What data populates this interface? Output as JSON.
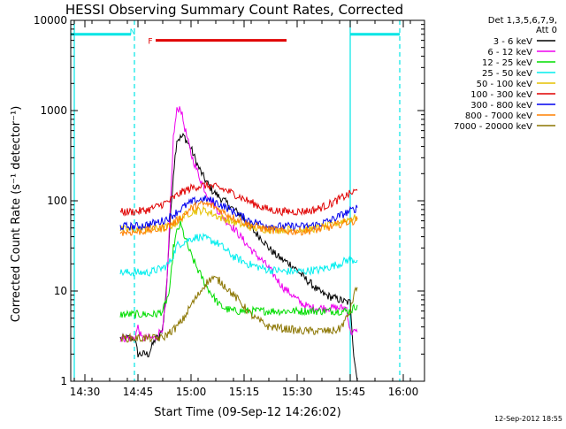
{
  "chart_data": {
    "type": "line",
    "title": "HESSI Observing Summary Count Rates, Corrected",
    "xlabel": "Start Time (09-Sep-12 14:26:02)",
    "ylabel": "Corrected Count Rate (s⁻¹ detector⁻¹)",
    "footer": "12-Sep-2012 18:55",
    "x_unit": "minutes after 14:26:02",
    "xlim": [
      0,
      100
    ],
    "ylim": [
      1,
      10000
    ],
    "yscale": "log",
    "x_ticks": [
      {
        "x": 4,
        "label": "14:30"
      },
      {
        "x": 19,
        "label": "14:45"
      },
      {
        "x": 34,
        "label": "15:00"
      },
      {
        "x": 49,
        "label": "15:15"
      },
      {
        "x": 64,
        "label": "15:30"
      },
      {
        "x": 79,
        "label": "15:45"
      },
      {
        "x": 94,
        "label": "16:00"
      }
    ],
    "y_ticks": [
      {
        "y": 1,
        "label": "1"
      },
      {
        "y": 10,
        "label": "10"
      },
      {
        "y": 100,
        "label": "100"
      },
      {
        "y": 1000,
        "label": "1000"
      },
      {
        "y": 10000,
        "label": "10000"
      }
    ],
    "legend": {
      "placement": "right",
      "header": [
        "Det 1,3,5,6,7,9,",
        "Att 0"
      ]
    },
    "annotations": [
      {
        "text": "N",
        "x": 17.5,
        "y": 7600,
        "color": "#00e5e5"
      },
      {
        "text": "F",
        "x": 22.5,
        "y": 6000,
        "color": "#e00000"
      }
    ],
    "shading_bars": [
      {
        "x0": 0,
        "x1": 17,
        "y": 7000,
        "color": "#00e5e5"
      },
      {
        "x0": 79,
        "x1": 93,
        "y": 7000,
        "color": "#00e5e5"
      },
      {
        "x0": 24,
        "x1": 61,
        "y": 6000,
        "color": "#e00000"
      }
    ],
    "vlines": [
      {
        "x": 1,
        "color": "#00e5e5",
        "style": "solid"
      },
      {
        "x": 18,
        "color": "#00e5e5",
        "style": "dashed"
      },
      {
        "x": 79,
        "color": "#00e5e5",
        "style": "solid"
      },
      {
        "x": 93,
        "color": "#00e5e5",
        "style": "dashed"
      }
    ],
    "series": [
      {
        "name": "3 - 6 keV",
        "color": "#000000",
        "x": [
          14,
          18,
          19,
          20,
          21,
          22,
          24,
          25,
          26,
          27,
          28,
          29,
          30,
          32,
          34,
          36,
          38,
          40,
          42,
          44,
          46,
          48,
          50,
          52,
          54,
          56,
          58,
          60,
          62,
          64,
          66,
          68,
          70,
          72,
          74,
          76,
          78,
          79,
          80,
          81
        ],
        "y": [
          3,
          3,
          2,
          2,
          2,
          2,
          3,
          3,
          4,
          10,
          50,
          200,
          480,
          520,
          380,
          240,
          170,
          130,
          110,
          95,
          80,
          70,
          55,
          45,
          38,
          30,
          25,
          22,
          20,
          17,
          14,
          12,
          10,
          9,
          8.5,
          8,
          7.5,
          7.5,
          2,
          1
        ]
      },
      {
        "name": "6 - 12 keV",
        "color": "#ee00ee",
        "x": [
          14,
          16,
          18,
          19,
          20,
          22,
          24,
          26,
          27,
          28,
          29,
          30,
          31,
          32,
          34,
          36,
          38,
          40,
          42,
          44,
          46,
          48,
          50,
          52,
          54,
          56,
          58,
          60,
          62,
          64,
          66,
          68,
          70,
          72,
          74,
          76,
          78,
          79,
          80,
          81
        ],
        "y": [
          3,
          3,
          3,
          4,
          3,
          3,
          3,
          4,
          8,
          60,
          500,
          1000,
          1100,
          700,
          330,
          200,
          130,
          95,
          75,
          60,
          50,
          40,
          32,
          26,
          22,
          18,
          14,
          11,
          9.5,
          8,
          7,
          6.5,
          6.5,
          6.5,
          6.5,
          6.5,
          6.5,
          3.5,
          3.5,
          3.5
        ]
      },
      {
        "name": "12 - 25 keV",
        "color": "#00dd00",
        "x": [
          14,
          18,
          20,
          22,
          24,
          26,
          28,
          29,
          30,
          31,
          32,
          33,
          34,
          36,
          38,
          40,
          42,
          44,
          46,
          48,
          50,
          52,
          54,
          56,
          58,
          60,
          62,
          64,
          66,
          68,
          70,
          72,
          74,
          76,
          78,
          79,
          80,
          81
        ],
        "y": [
          5.5,
          5.5,
          5.5,
          5.5,
          5.5,
          6,
          10,
          30,
          45,
          55,
          42,
          32,
          25,
          17,
          12,
          9,
          7,
          6.3,
          6,
          6,
          6,
          6,
          6,
          6,
          6,
          6,
          6,
          6,
          6,
          6,
          6,
          6,
          6,
          6,
          6,
          6,
          6.5,
          7
        ]
      },
      {
        "name": "25 - 50 keV",
        "color": "#00eeee",
        "x": [
          14,
          18,
          20,
          22,
          24,
          26,
          27,
          28,
          29,
          30,
          32,
          34,
          36,
          38,
          40,
          42,
          44,
          46,
          48,
          50,
          52,
          54,
          56,
          58,
          60,
          62,
          64,
          66,
          68,
          70,
          72,
          74,
          76,
          78,
          79,
          80,
          81
        ],
        "y": [
          16,
          16,
          16,
          16,
          17,
          18,
          19,
          21,
          25,
          32,
          35,
          38,
          40,
          38,
          36,
          33,
          28,
          24,
          22,
          20,
          19,
          18,
          17,
          17,
          16.5,
          16.5,
          16.5,
          16.5,
          17,
          17,
          18,
          19,
          20,
          22,
          22,
          22,
          22
        ]
      },
      {
        "name": "50 - 100 keV",
        "color": "#e5c100",
        "x": [
          14,
          18,
          20,
          22,
          24,
          26,
          28,
          30,
          32,
          34,
          36,
          38,
          40,
          42,
          44,
          46,
          48,
          50,
          52,
          54,
          56,
          58,
          60,
          62,
          64,
          66,
          68,
          70,
          72,
          74,
          76,
          78,
          80,
          81
        ],
        "y": [
          48,
          48,
          48,
          49,
          49,
          50,
          52,
          58,
          68,
          75,
          78,
          78,
          72,
          66,
          62,
          58,
          55,
          52,
          50,
          49,
          48,
          48,
          48,
          48,
          48,
          48,
          49,
          50,
          52,
          55,
          58,
          62,
          64,
          65
        ]
      },
      {
        "name": "100 - 300 keV",
        "color": "#e00000",
        "x": [
          14,
          18,
          20,
          22,
          24,
          26,
          28,
          30,
          32,
          34,
          36,
          38,
          40,
          42,
          44,
          46,
          48,
          50,
          52,
          54,
          56,
          58,
          60,
          62,
          64,
          66,
          68,
          70,
          72,
          74,
          76,
          78,
          80,
          81
        ],
        "y": [
          75,
          76,
          77,
          80,
          85,
          92,
          100,
          115,
          128,
          138,
          145,
          148,
          145,
          138,
          130,
          120,
          110,
          100,
          92,
          85,
          80,
          78,
          76,
          76,
          76,
          77,
          78,
          82,
          88,
          95,
          105,
          115,
          125,
          130
        ]
      },
      {
        "name": "300 - 800 keV",
        "color": "#0000ee",
        "x": [
          14,
          18,
          20,
          22,
          24,
          26,
          28,
          30,
          32,
          34,
          36,
          38,
          40,
          42,
          44,
          46,
          48,
          50,
          52,
          54,
          56,
          58,
          60,
          62,
          64,
          66,
          68,
          70,
          72,
          74,
          76,
          78,
          80,
          81
        ],
        "y": [
          52,
          52,
          53,
          55,
          57,
          60,
          66,
          75,
          86,
          96,
          102,
          104,
          100,
          92,
          84,
          76,
          68,
          62,
          58,
          55,
          53,
          52,
          52,
          52,
          52,
          52,
          53,
          55,
          58,
          62,
          68,
          74,
          80,
          84
        ]
      },
      {
        "name": "800 - 7000 keV",
        "color": "#ff8000",
        "x": [
          14,
          18,
          20,
          22,
          24,
          26,
          28,
          30,
          32,
          34,
          36,
          38,
          40,
          42,
          44,
          46,
          48,
          50,
          52,
          54,
          56,
          58,
          60,
          62,
          64,
          66,
          68,
          70,
          72,
          74,
          76,
          78,
          80,
          81
        ],
        "y": [
          45,
          45,
          46,
          47,
          48,
          50,
          54,
          60,
          70,
          82,
          90,
          92,
          88,
          80,
          72,
          65,
          60,
          55,
          52,
          50,
          48,
          47,
          46,
          46,
          46,
          46,
          47,
          48,
          50,
          52,
          55,
          58,
          60,
          62
        ]
      },
      {
        "name": "7000 - 20000 keV",
        "color": "#8b7500",
        "x": [
          14,
          18,
          20,
          22,
          24,
          26,
          28,
          30,
          32,
          34,
          36,
          38,
          40,
          42,
          44,
          46,
          48,
          50,
          52,
          54,
          56,
          58,
          60,
          62,
          64,
          66,
          68,
          70,
          72,
          74,
          76,
          78,
          79,
          80,
          81
        ],
        "y": [
          3,
          3,
          3,
          3,
          3,
          3,
          3.5,
          4,
          5,
          7,
          9,
          12,
          14,
          13,
          11,
          9,
          7.5,
          6,
          5,
          4.5,
          4,
          4,
          3.8,
          3.8,
          3.6,
          3.6,
          3.6,
          3.6,
          3.6,
          3.6,
          3.8,
          5,
          6,
          9,
          11
        ]
      }
    ]
  }
}
